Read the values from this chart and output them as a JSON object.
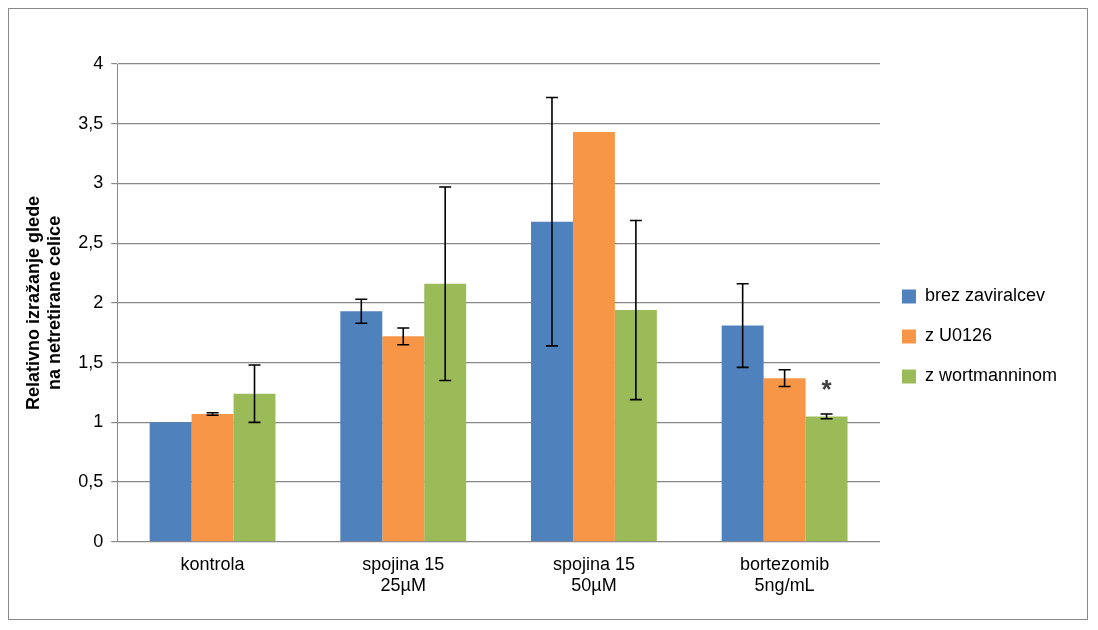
{
  "chart_data": {
    "type": "bar",
    "ylabel": "Relativno izražanje glede na netretirane celice",
    "categories": [
      "kontrola",
      "spojina 15 25µM",
      "spojina 15 50µM",
      "bortezomib 5ng/mL"
    ],
    "series": [
      {
        "name": "brez zaviralcev",
        "color": "#4f81bd",
        "values": [
          1.0,
          1.93,
          2.68,
          1.81
        ],
        "errors": [
          null,
          0.1,
          1.04,
          0.35
        ]
      },
      {
        "name": "z U0126",
        "color": "#f79646",
        "values": [
          1.07,
          1.72,
          3.43,
          1.37
        ],
        "errors": [
          0.01,
          0.07,
          null,
          0.07
        ]
      },
      {
        "name": "z wortmanninom",
        "color": "#9bbb59",
        "values": [
          1.24,
          2.16,
          1.94,
          1.05
        ],
        "errors": [
          0.24,
          0.81,
          0.75,
          0.02
        ]
      }
    ],
    "ylim": [
      0,
      4
    ],
    "yticks": [
      0,
      {
        "value": 0.5,
        "label": "0,5"
      },
      1,
      {
        "value": 1.5,
        "label": "1,5"
      },
      2,
      {
        "value": 2.5,
        "label": "2,5"
      },
      3,
      {
        "value": 3.5,
        "label": "3,5"
      },
      4
    ],
    "grid": "y",
    "legend": "right",
    "annotations": [
      {
        "text": "*",
        "x": "bortezomib 5ng/mL",
        "y": 1.3
      }
    ]
  }
}
